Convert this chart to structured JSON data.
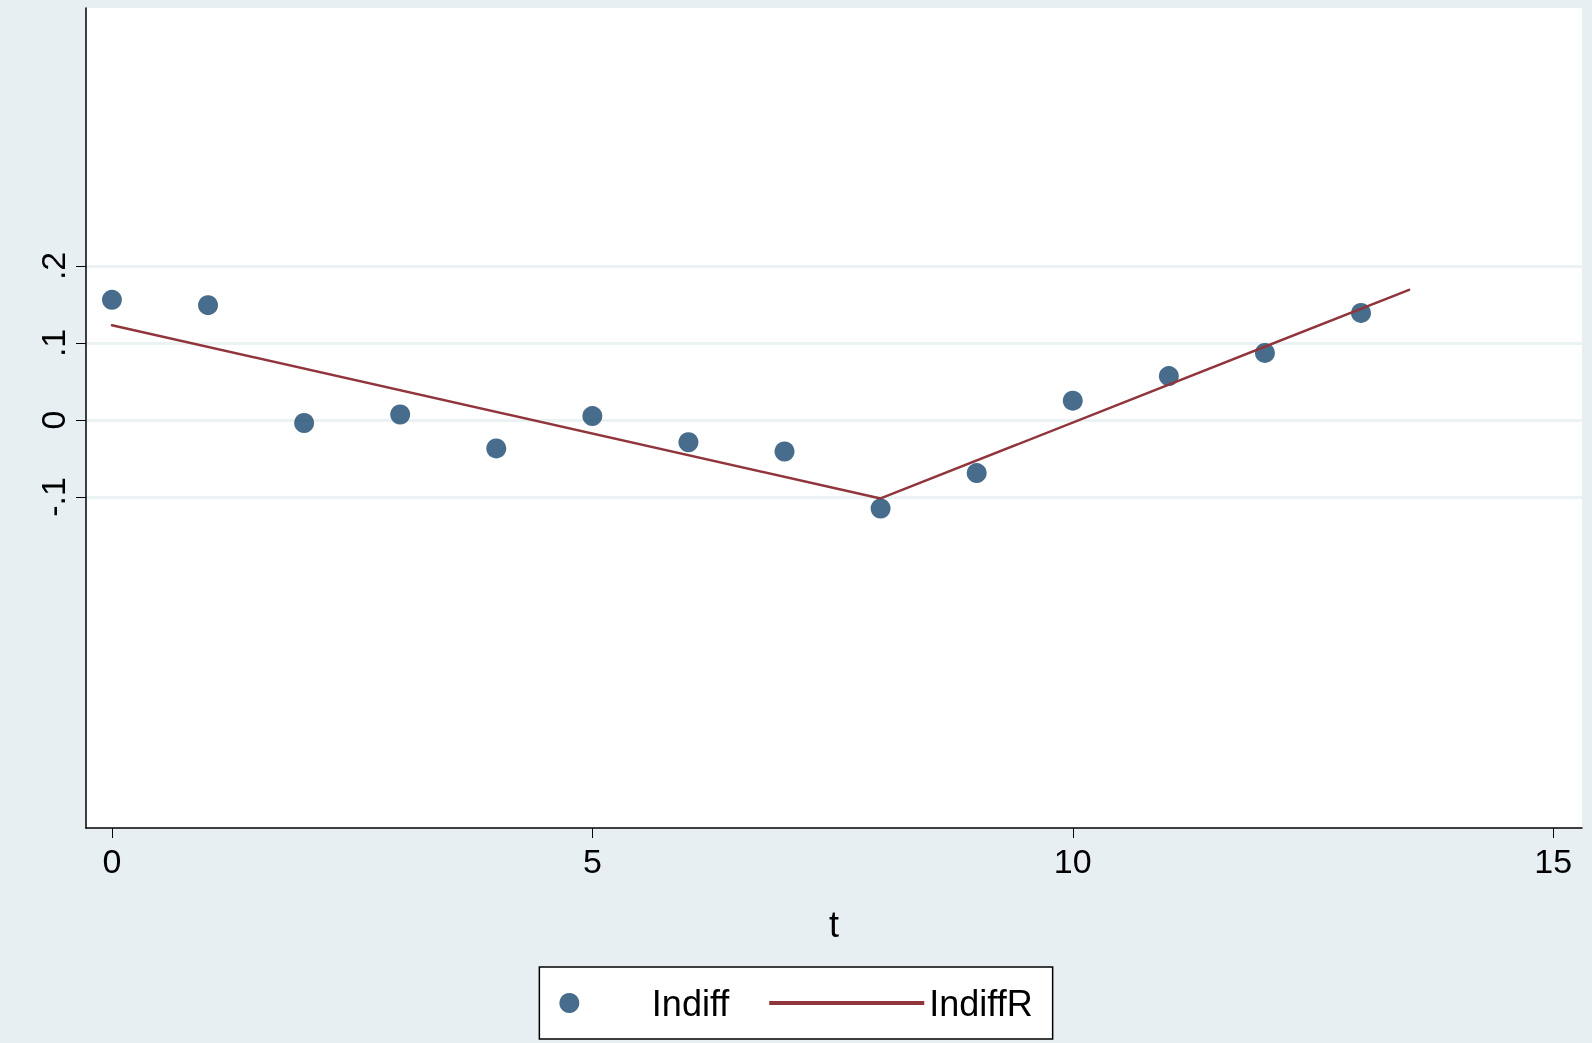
{
  "chart_data": {
    "type": "scatter",
    "xlabel": "t",
    "xlim": [
      -0.27,
      15.3
    ],
    "xticks": [
      0,
      5,
      10,
      15
    ],
    "ylim": [
      -0.53,
      0.535
    ],
    "yticks": [
      {
        "value": -0.1,
        "label": "-.1"
      },
      {
        "value": 0,
        "label": "0"
      },
      {
        "value": 0.1,
        "label": ".1"
      },
      {
        "value": 0.2,
        "label": ".2"
      }
    ],
    "grid": "y",
    "legend": "bottom",
    "series": [
      {
        "name": "Indiff",
        "marker": "circle",
        "color": "#1a476f",
        "x": [
          0,
          1,
          2,
          3,
          4,
          5,
          6,
          7,
          8,
          9,
          10,
          11,
          12,
          13
        ],
        "values": [
          0.156,
          0.149,
          -0.004,
          0.007,
          -0.037,
          0.005,
          -0.029,
          -0.041,
          -0.115,
          -0.069,
          0.025,
          0.057,
          0.087,
          0.139
        ]
      },
      {
        "name": "IndiffR",
        "type": "line",
        "color": "#90353b",
        "line_style": "solid",
        "x": [
          0,
          8,
          13.5
        ],
        "values": [
          0.123,
          -0.102,
          0.169
        ]
      }
    ]
  }
}
